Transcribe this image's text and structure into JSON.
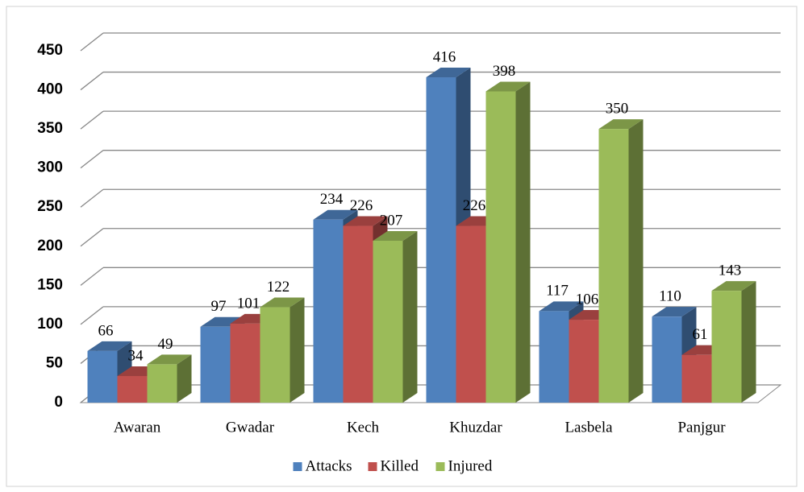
{
  "chart_data": {
    "type": "bar3d",
    "categories": [
      "Awaran",
      "Gwadar",
      "Kech",
      "Khuzdar",
      "Lasbela",
      "Panjgur"
    ],
    "series": [
      {
        "name": "Attacks",
        "color": "#4f81bd",
        "values": [
          66,
          97,
          234,
          416,
          117,
          110
        ]
      },
      {
        "name": "Killed",
        "color": "#c0504d",
        "values": [
          34,
          101,
          226,
          226,
          106,
          61
        ]
      },
      {
        "name": "Injured",
        "color": "#9bbb59",
        "values": [
          49,
          122,
          207,
          398,
          350,
          143
        ]
      }
    ],
    "ylim": [
      0,
      450
    ],
    "yticks": [
      0,
      50,
      100,
      150,
      200,
      250,
      300,
      350,
      400,
      450
    ],
    "grid": true,
    "legend": "bottom",
    "data_labels": true
  }
}
